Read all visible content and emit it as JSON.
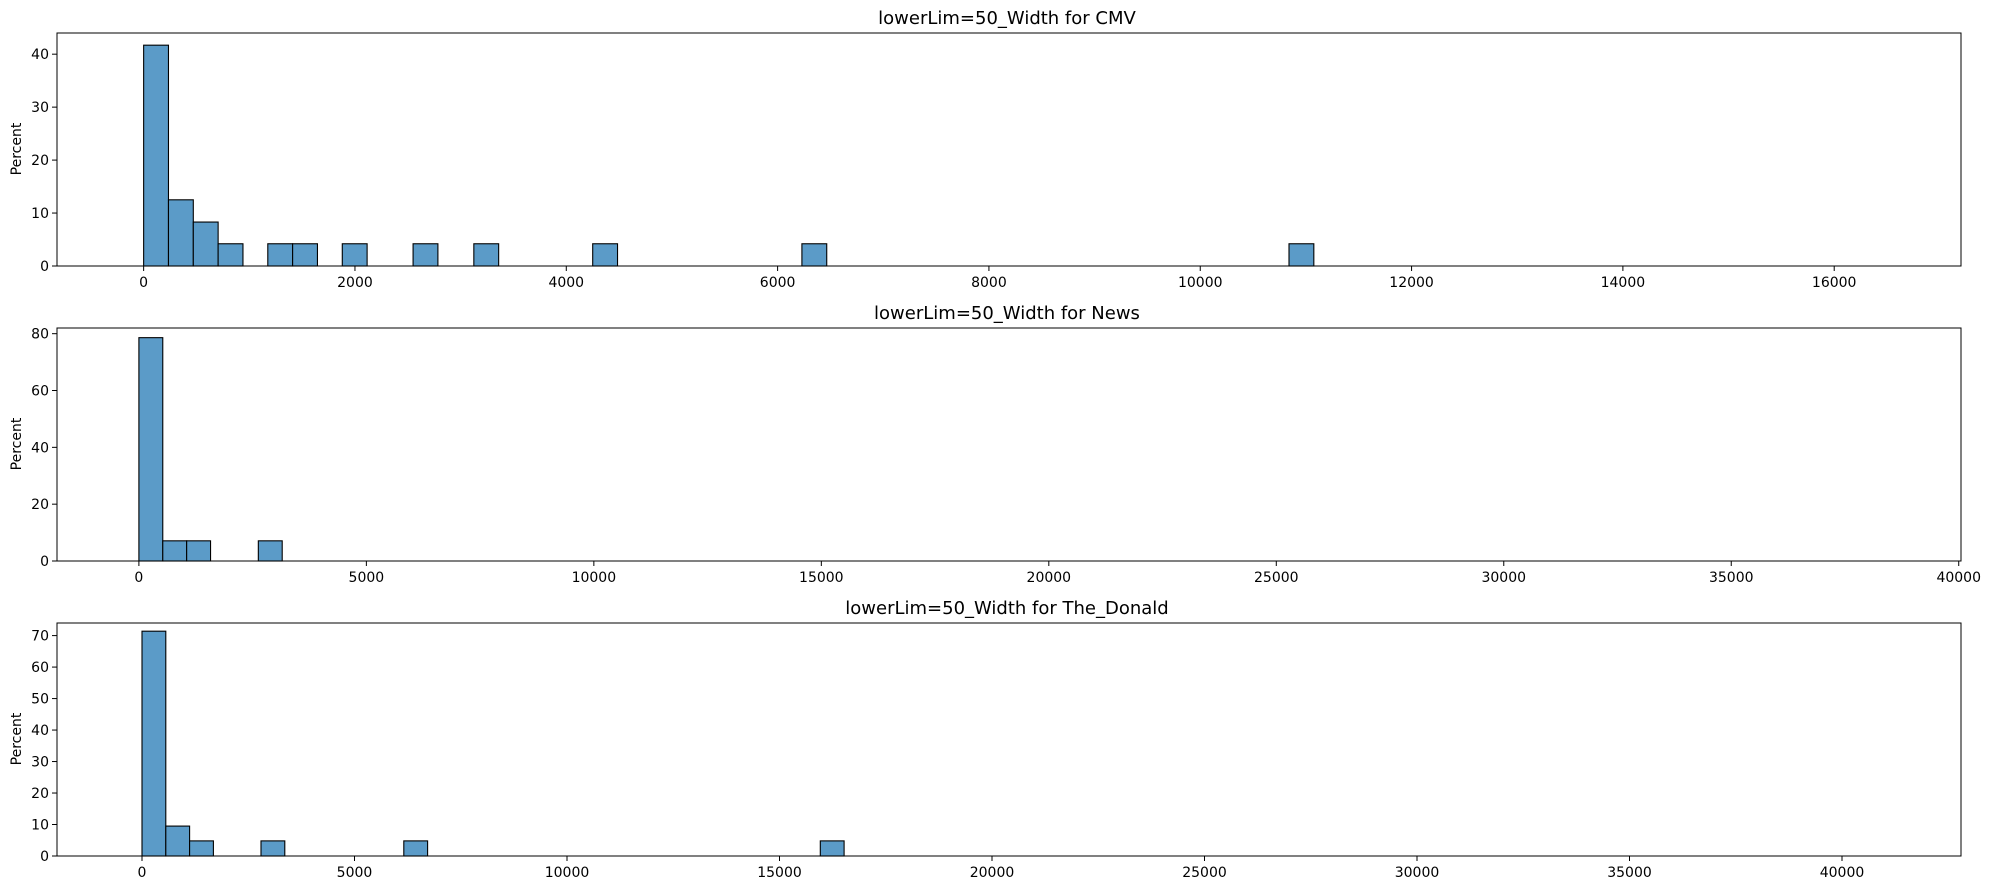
{
  "chart_data": [
    {
      "type": "bar",
      "title": "lowerLim=50_Width for CMV",
      "xlabel": "",
      "ylabel": "Percent",
      "xlim": [
        -820,
        17200
      ],
      "ylim": [
        0,
        44
      ],
      "xticks": [
        0,
        2000,
        4000,
        6000,
        8000,
        10000,
        12000,
        14000,
        16000
      ],
      "yticks": [
        0,
        10,
        20,
        30,
        40
      ],
      "bin_width": 235,
      "bins": [
        {
          "x": 0,
          "value": 41.7
        },
        {
          "x": 235,
          "value": 12.5
        },
        {
          "x": 470,
          "value": 8.3
        },
        {
          "x": 705,
          "value": 4.2
        },
        {
          "x": 1175,
          "value": 4.2
        },
        {
          "x": 1410,
          "value": 4.2
        },
        {
          "x": 1880,
          "value": 4.2
        },
        {
          "x": 2550,
          "value": 4.2
        },
        {
          "x": 3125,
          "value": 4.2
        },
        {
          "x": 4250,
          "value": 4.2
        },
        {
          "x": 6230,
          "value": 4.2
        },
        {
          "x": 10840,
          "value": 4.2
        }
      ],
      "baseline_end": 16350,
      "grid": false,
      "color": "#5b9bc8"
    },
    {
      "type": "bar",
      "title": "lowerLim=50_Width for News",
      "xlabel": "",
      "ylabel": "Percent",
      "xlim": [
        -1800,
        40050
      ],
      "ylim": [
        0,
        82
      ],
      "xticks": [
        0,
        5000,
        10000,
        15000,
        20000,
        25000,
        30000,
        35000,
        40000
      ],
      "yticks": [
        0,
        20,
        40,
        60,
        80
      ],
      "bin_width": 525,
      "bins": [
        {
          "x": 0,
          "value": 78.6
        },
        {
          "x": 525,
          "value": 7.1
        },
        {
          "x": 1050,
          "value": 7.1
        },
        {
          "x": 2625,
          "value": 7.1
        }
      ],
      "baseline_end": 38150,
      "grid": false,
      "color": "#5b9bc8"
    },
    {
      "type": "bar",
      "title": "lowerLim=50_Width for The_Donald",
      "xlabel": "",
      "ylabel": "Percent",
      "xlim": [
        -2000,
        42800
      ],
      "ylim": [
        0,
        74
      ],
      "xticks": [
        0,
        5000,
        10000,
        15000,
        20000,
        25000,
        30000,
        35000,
        40000
      ],
      "yticks": [
        0,
        10,
        20,
        30,
        40,
        50,
        60,
        70
      ],
      "bin_width": 560,
      "bins": [
        {
          "x": 0,
          "value": 71.4
        },
        {
          "x": 560,
          "value": 9.5
        },
        {
          "x": 1120,
          "value": 4.8
        },
        {
          "x": 2800,
          "value": 4.8
        },
        {
          "x": 6160,
          "value": 4.8
        },
        {
          "x": 15960,
          "value": 4.8
        }
      ],
      "baseline_end": 40800,
      "grid": false,
      "color": "#5b9bc8"
    }
  ]
}
